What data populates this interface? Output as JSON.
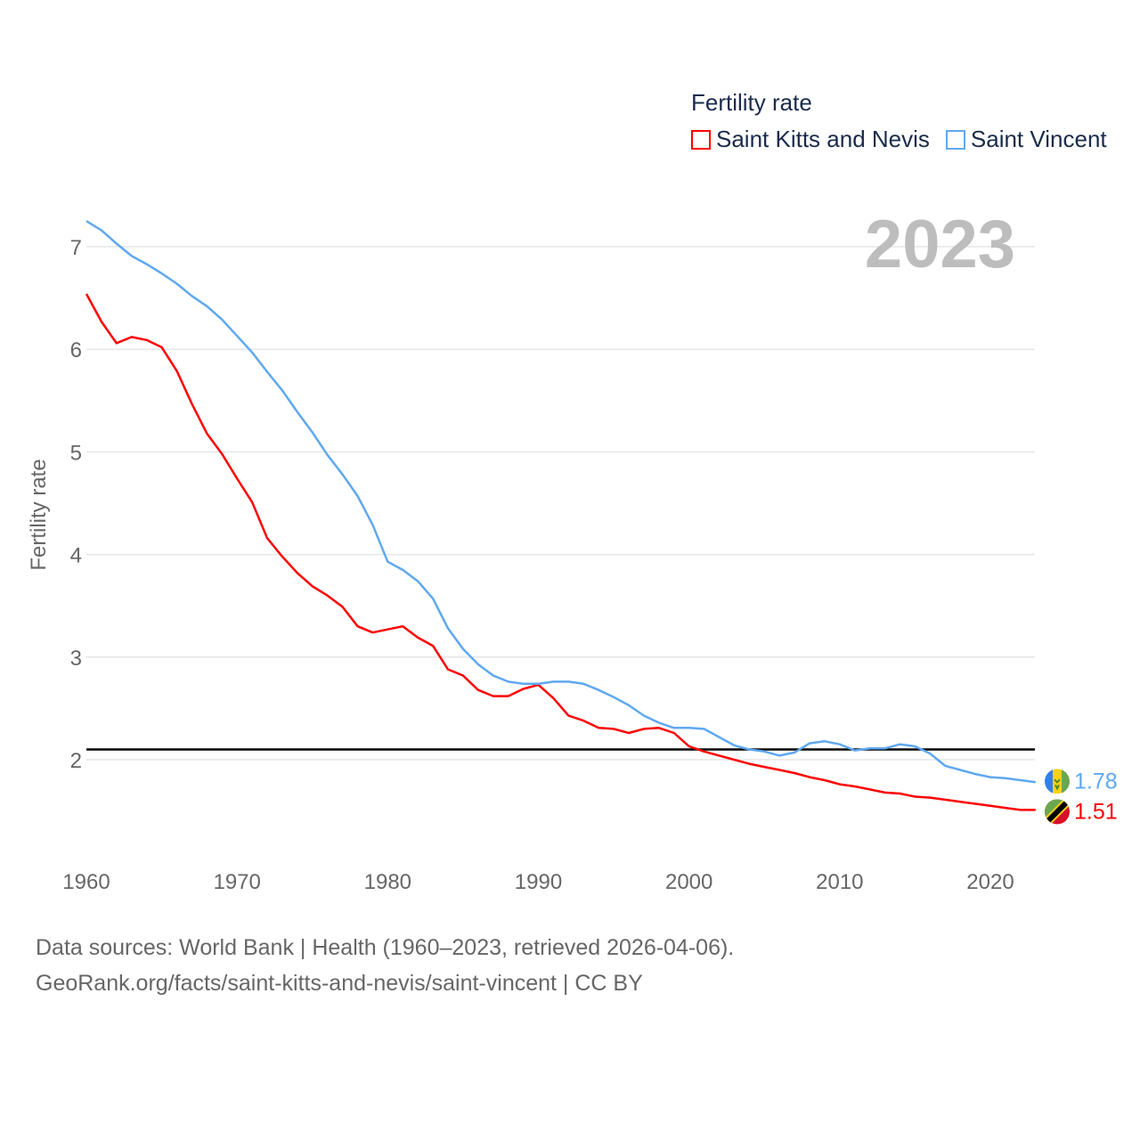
{
  "chart_data": {
    "type": "line",
    "ylabel": "Fertility rate",
    "xlabel": "",
    "year_label": "2023",
    "legend": {
      "title": "Fertility rate",
      "placement": "top-right"
    },
    "xlim": [
      1960,
      2023
    ],
    "ylim": [
      1.1,
      7.5
    ],
    "x_ticks": [
      1960,
      1970,
      1980,
      1990,
      2000,
      2010,
      2020
    ],
    "y_ticks": [
      2,
      3,
      4,
      5,
      6,
      7
    ],
    "grid": true,
    "reference_line": 2.1,
    "x": [
      1960,
      1961,
      1962,
      1963,
      1964,
      1965,
      1966,
      1967,
      1968,
      1969,
      1970,
      1971,
      1972,
      1973,
      1974,
      1975,
      1976,
      1977,
      1978,
      1979,
      1980,
      1981,
      1982,
      1983,
      1984,
      1985,
      1986,
      1987,
      1988,
      1989,
      1990,
      1991,
      1992,
      1993,
      1994,
      1995,
      1996,
      1997,
      1998,
      1999,
      2000,
      2001,
      2002,
      2003,
      2004,
      2005,
      2006,
      2007,
      2008,
      2009,
      2010,
      2011,
      2012,
      2013,
      2014,
      2015,
      2016,
      2017,
      2018,
      2019,
      2020,
      2021,
      2022,
      2023
    ],
    "series": [
      {
        "name": "Saint Kitts and Nevis",
        "color": "#ff0000",
        "end_label": "1.51",
        "values": [
          6.54,
          6.27,
          6.06,
          6.12,
          6.09,
          6.02,
          5.79,
          5.47,
          5.18,
          4.98,
          4.74,
          4.51,
          4.16,
          3.98,
          3.82,
          3.69,
          3.6,
          3.49,
          3.3,
          3.24,
          3.27,
          3.3,
          3.19,
          3.11,
          2.88,
          2.82,
          2.68,
          2.62,
          2.62,
          2.69,
          2.73,
          2.6,
          2.43,
          2.38,
          2.31,
          2.3,
          2.26,
          2.3,
          2.31,
          2.26,
          2.13,
          2.08,
          2.04,
          2.0,
          1.96,
          1.93,
          1.9,
          1.87,
          1.83,
          1.8,
          1.76,
          1.74,
          1.71,
          1.68,
          1.67,
          1.64,
          1.63,
          1.61,
          1.59,
          1.57,
          1.55,
          1.53,
          1.51,
          1.51
        ]
      },
      {
        "name": "Saint Vincent",
        "color": "#5fa8f0",
        "end_label": "1.78",
        "values": [
          7.25,
          7.16,
          7.03,
          6.91,
          6.83,
          6.74,
          6.64,
          6.52,
          6.42,
          6.29,
          6.13,
          5.97,
          5.78,
          5.6,
          5.39,
          5.19,
          4.97,
          4.78,
          4.57,
          4.29,
          3.93,
          3.85,
          3.74,
          3.57,
          3.28,
          3.08,
          2.93,
          2.82,
          2.76,
          2.74,
          2.74,
          2.76,
          2.76,
          2.74,
          2.68,
          2.61,
          2.53,
          2.43,
          2.36,
          2.31,
          2.31,
          2.3,
          2.22,
          2.14,
          2.1,
          2.08,
          2.04,
          2.07,
          2.16,
          2.18,
          2.15,
          2.09,
          2.11,
          2.11,
          2.15,
          2.13,
          2.06,
          1.94,
          1.9,
          1.86,
          1.83,
          1.82,
          1.8,
          1.78
        ]
      }
    ]
  },
  "source": {
    "line1": "Data sources: World Bank | Health (1960–2023, retrieved 2026-04-06).",
    "line2": "GeoRank.org/facts/saint-kitts-and-nevis/saint-vincent | CC BY"
  }
}
